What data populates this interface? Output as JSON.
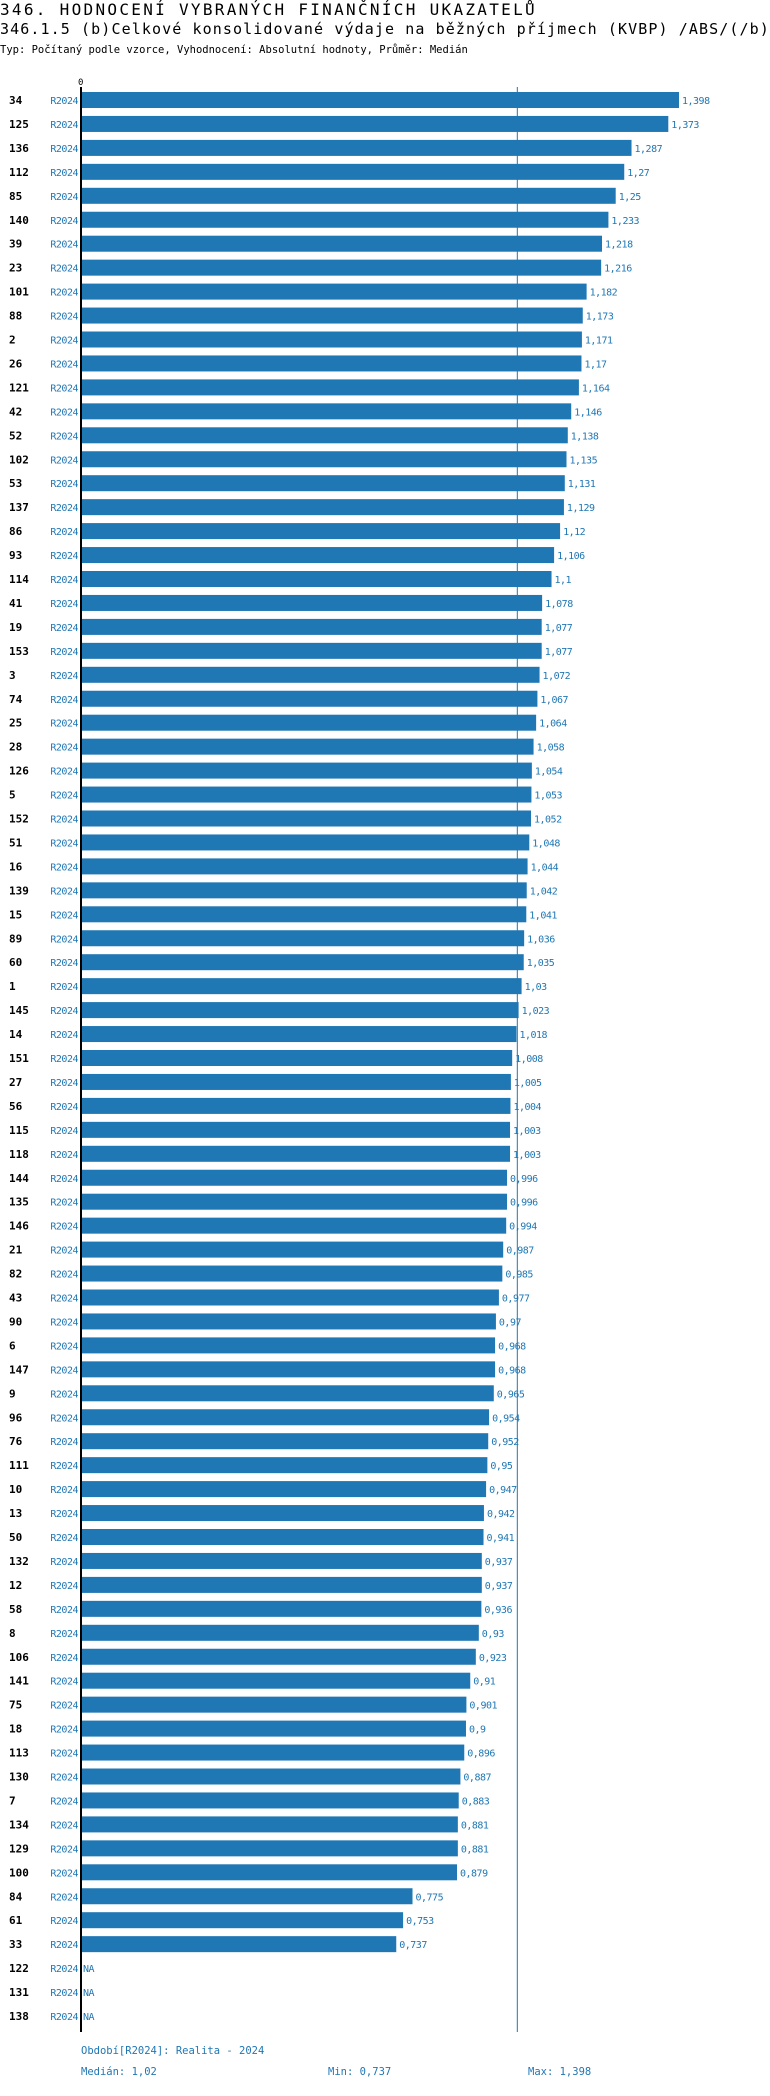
{
  "header": {
    "title": "346. HODNOCENÍ VYBRANÝCH FINANČNÍCH UKAZATELŮ",
    "subtitle": "346.1.5 (b)Celkové konsolidované výdaje na běžných příjmech (KVBP) /ABS/(/b)",
    "info": "Typ: Počítaný podle vzorce, Vyhodnocení: Absolutní hodnoty, Průměr: Medián"
  },
  "colors": {
    "bar": "#1f77b4",
    "label": "#1f77b4",
    "axis": "#000000"
  },
  "chart_data": {
    "type": "bar",
    "orientation": "horizontal",
    "axis_zero_label": "0",
    "period": "R2024",
    "median": 1.02,
    "xlim": [
      0,
      1.398
    ],
    "rows": [
      {
        "id": "34",
        "label": "1,398"
      },
      {
        "id": "125",
        "label": "1,373"
      },
      {
        "id": "136",
        "label": "1,287"
      },
      {
        "id": "112",
        "label": "1,27"
      },
      {
        "id": "85",
        "label": "1,25"
      },
      {
        "id": "140",
        "label": "1,233"
      },
      {
        "id": "39",
        "label": "1,218"
      },
      {
        "id": "23",
        "label": "1,216"
      },
      {
        "id": "101",
        "label": "1,182"
      },
      {
        "id": "88",
        "label": "1,173"
      },
      {
        "id": "2",
        "label": "1,171"
      },
      {
        "id": "26",
        "label": "1,17"
      },
      {
        "id": "121",
        "label": "1,164"
      },
      {
        "id": "42",
        "label": "1,146"
      },
      {
        "id": "52",
        "label": "1,138"
      },
      {
        "id": "102",
        "label": "1,135"
      },
      {
        "id": "53",
        "label": "1,131"
      },
      {
        "id": "137",
        "label": "1,129"
      },
      {
        "id": "86",
        "label": "1,12"
      },
      {
        "id": "93",
        "label": "1,106"
      },
      {
        "id": "114",
        "label": "1,1"
      },
      {
        "id": "41",
        "label": "1,078"
      },
      {
        "id": "19",
        "label": "1,077"
      },
      {
        "id": "153",
        "label": "1,077"
      },
      {
        "id": "3",
        "label": "1,072"
      },
      {
        "id": "74",
        "label": "1,067"
      },
      {
        "id": "25",
        "label": "1,064"
      },
      {
        "id": "28",
        "label": "1,058"
      },
      {
        "id": "126",
        "label": "1,054"
      },
      {
        "id": "5",
        "label": "1,053"
      },
      {
        "id": "152",
        "label": "1,052"
      },
      {
        "id": "51",
        "label": "1,048"
      },
      {
        "id": "16",
        "label": "1,044"
      },
      {
        "id": "139",
        "label": "1,042"
      },
      {
        "id": "15",
        "label": "1,041"
      },
      {
        "id": "89",
        "label": "1,036"
      },
      {
        "id": "60",
        "label": "1,035"
      },
      {
        "id": "1",
        "label": "1,03"
      },
      {
        "id": "145",
        "label": "1,023"
      },
      {
        "id": "14",
        "label": "1,018"
      },
      {
        "id": "151",
        "label": "1,008"
      },
      {
        "id": "27",
        "label": "1,005"
      },
      {
        "id": "56",
        "label": "1,004"
      },
      {
        "id": "115",
        "label": "1,003"
      },
      {
        "id": "118",
        "label": "1,003"
      },
      {
        "id": "144",
        "label": "0,996"
      },
      {
        "id": "135",
        "label": "0,996"
      },
      {
        "id": "146",
        "label": "0,994"
      },
      {
        "id": "21",
        "label": "0,987"
      },
      {
        "id": "82",
        "label": "0,985"
      },
      {
        "id": "43",
        "label": "0,977"
      },
      {
        "id": "90",
        "label": "0,97"
      },
      {
        "id": "6",
        "label": "0,968"
      },
      {
        "id": "147",
        "label": "0,968"
      },
      {
        "id": "9",
        "label": "0,965"
      },
      {
        "id": "96",
        "label": "0,954"
      },
      {
        "id": "76",
        "label": "0,952"
      },
      {
        "id": "111",
        "label": "0,95"
      },
      {
        "id": "10",
        "label": "0,947"
      },
      {
        "id": "13",
        "label": "0,942"
      },
      {
        "id": "50",
        "label": "0,941"
      },
      {
        "id": "132",
        "label": "0,937"
      },
      {
        "id": "12",
        "label": "0,937"
      },
      {
        "id": "58",
        "label": "0,936"
      },
      {
        "id": "8",
        "label": "0,93"
      },
      {
        "id": "106",
        "label": "0,923"
      },
      {
        "id": "141",
        "label": "0,91"
      },
      {
        "id": "75",
        "label": "0,901"
      },
      {
        "id": "18",
        "label": "0,9"
      },
      {
        "id": "113",
        "label": "0,896"
      },
      {
        "id": "130",
        "label": "0,887"
      },
      {
        "id": "7",
        "label": "0,883"
      },
      {
        "id": "134",
        "label": "0,881"
      },
      {
        "id": "129",
        "label": "0,881"
      },
      {
        "id": "100",
        "label": "0,879"
      },
      {
        "id": "84",
        "label": "0,775"
      },
      {
        "id": "61",
        "label": "0,753"
      },
      {
        "id": "33",
        "label": "0,737"
      },
      {
        "id": "122",
        "label": "NA"
      },
      {
        "id": "131",
        "label": "NA"
      },
      {
        "id": "138",
        "label": "NA"
      }
    ]
  },
  "footer": {
    "period_note": "Období[R2024]: Realita - 2024",
    "median": "Medián: 1,02",
    "min": "Min: 0,737",
    "max": "Max: 1,398"
  }
}
